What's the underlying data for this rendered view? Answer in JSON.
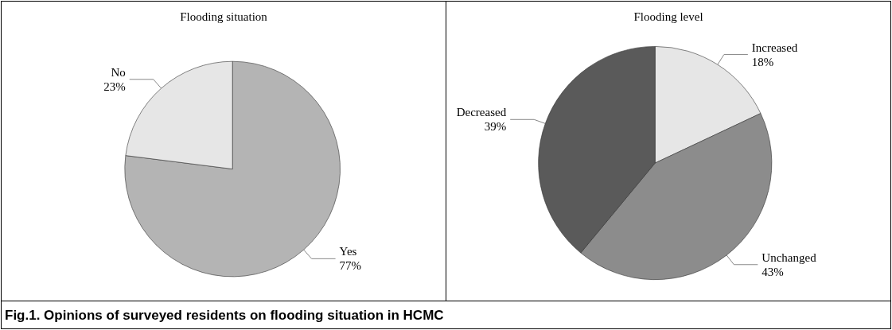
{
  "chart_data": [
    {
      "type": "pie",
      "title": "Flooding situation",
      "categories": [
        "Yes",
        "No"
      ],
      "values": [
        77,
        23
      ],
      "colors": [
        "#b4b4b4",
        "#e6e6e6"
      ],
      "value_labels": [
        "77%",
        "23%"
      ],
      "annotations": [
        "Fig.1. Opinions of surveyed residents on flooding situation in HCMC"
      ]
    },
    {
      "type": "pie",
      "title": "Flooding level",
      "categories": [
        "Increased",
        "Unchanged",
        "Decreased"
      ],
      "values": [
        18,
        43,
        39
      ],
      "colors": [
        "#e6e6e6",
        "#8c8c8c",
        "#5a5a5a"
      ],
      "value_labels": [
        "18%",
        "43%",
        "39%"
      ]
    }
  ]
}
